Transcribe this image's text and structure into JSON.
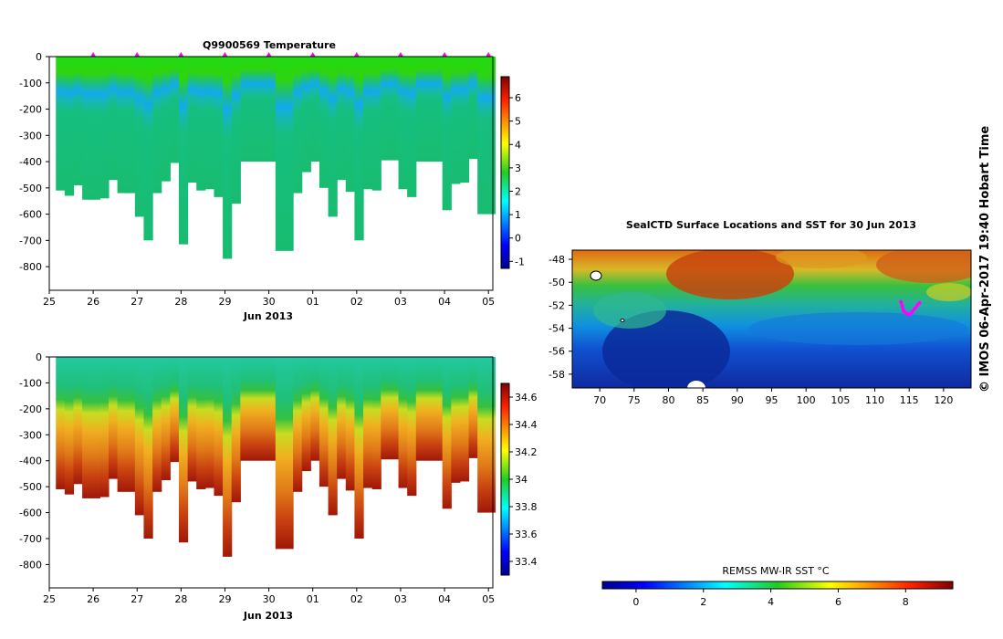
{
  "chart_data": [
    {
      "type": "heatmap",
      "title": "Q9900569  Temperature",
      "xlabel": "Jun 2013",
      "x_ticks": [
        "25",
        "26",
        "27",
        "28",
        "29",
        "30",
        "01",
        "02",
        "03",
        "04",
        "05"
      ],
      "y_ticks": [
        0,
        -100,
        -200,
        -300,
        -400,
        -500,
        -600,
        -700,
        -800
      ],
      "ylim": [
        -890,
        0
      ],
      "colorbar_ticks": [
        6,
        5,
        4,
        3,
        2,
        1,
        0,
        -1
      ],
      "colorbar_range": [
        -1.3,
        6.9
      ],
      "profile_times": [
        25.25,
        25.45,
        25.65,
        25.85,
        26.05,
        26.25,
        26.45,
        26.65,
        26.85,
        27.05,
        27.25,
        27.45,
        27.65,
        27.85,
        28.05,
        28.25,
        28.45,
        28.65,
        28.85,
        29.05,
        29.25,
        29.45,
        29.65,
        29.85,
        30.05,
        30.25,
        30.45,
        30.65,
        30.85,
        31.05,
        31.25,
        31.45,
        31.65,
        31.85,
        32.05,
        32.25,
        32.45,
        32.65,
        32.85,
        33.05,
        33.25,
        33.45,
        33.65,
        33.85,
        34.05,
        34.25,
        34.45,
        34.65,
        34.85,
        35.05
      ],
      "profile_max_depth": [
        510,
        530,
        490,
        545,
        545,
        540,
        470,
        520,
        520,
        610,
        700,
        520,
        475,
        405,
        715,
        480,
        510,
        505,
        535,
        770,
        560,
        400,
        400,
        400,
        400,
        740,
        740,
        520,
        440,
        400,
        500,
        610,
        470,
        515,
        700,
        505,
        510,
        395,
        395,
        505,
        535,
        400,
        400,
        400,
        585,
        485,
        480,
        390,
        600,
        600
      ],
      "surface_marker_times": [
        26,
        27,
        28,
        29,
        30,
        31,
        32,
        33,
        34,
        35
      ]
    },
    {
      "type": "heatmap",
      "title": "",
      "xlabel": "Jun 2013",
      "x_ticks": [
        "25",
        "26",
        "27",
        "28",
        "29",
        "30",
        "01",
        "02",
        "03",
        "04",
        "05"
      ],
      "y_ticks": [
        0,
        -100,
        -200,
        -300,
        -400,
        -500,
        -600,
        -700,
        -800
      ],
      "ylim": [
        -890,
        0
      ],
      "colorbar_ticks": [
        34.6,
        34.4,
        34.2,
        34,
        33.8,
        33.6,
        33.4
      ],
      "colorbar_range": [
        33.3,
        34.7
      ],
      "profile_times": [
        25.25,
        25.45,
        25.65,
        25.85,
        26.05,
        26.25,
        26.45,
        26.65,
        26.85,
        27.05,
        27.25,
        27.45,
        27.65,
        27.85,
        28.05,
        28.25,
        28.45,
        28.65,
        28.85,
        29.05,
        29.25,
        29.45,
        29.65,
        29.85,
        30.05,
        30.25,
        30.45,
        30.65,
        30.85,
        31.05,
        31.25,
        31.45,
        31.65,
        31.85,
        32.05,
        32.25,
        32.45,
        32.65,
        32.85,
        33.05,
        33.25,
        33.45,
        33.65,
        33.85,
        34.05,
        34.25,
        34.45,
        34.65,
        34.85,
        35.05
      ],
      "profile_max_depth": [
        510,
        530,
        490,
        545,
        545,
        540,
        470,
        520,
        520,
        610,
        700,
        520,
        475,
        405,
        715,
        480,
        510,
        505,
        535,
        770,
        560,
        400,
        400,
        400,
        400,
        740,
        740,
        520,
        440,
        400,
        500,
        610,
        470,
        515,
        700,
        505,
        510,
        395,
        395,
        505,
        535,
        400,
        400,
        400,
        585,
        485,
        480,
        390,
        600,
        600
      ]
    },
    {
      "type": "heatmap",
      "title": "SealCTD Surface Locations and SST for 30 Jun 2013",
      "x_ticks": [
        70,
        75,
        80,
        85,
        90,
        95,
        100,
        105,
        110,
        115,
        120
      ],
      "y_ticks": [
        -48,
        -50,
        -52,
        -54,
        -56,
        -58
      ],
      "xlim": [
        66,
        124
      ],
      "ylim": [
        -59.2,
        -47.2
      ],
      "colorbar_label": "REMSS MW-IR SST °C",
      "colorbar_ticks": [
        0,
        2,
        4,
        6,
        8
      ],
      "colorbar_range": [
        -1,
        9.4
      ],
      "track_points": [
        [
          113.8,
          -51.7
        ],
        [
          114.0,
          -52.1
        ],
        [
          114.2,
          -52.5
        ],
        [
          114.6,
          -52.7
        ],
        [
          115.0,
          -52.8
        ],
        [
          115.4,
          -52.6
        ],
        [
          115.8,
          -52.3
        ],
        [
          116.2,
          -52.0
        ],
        [
          116.5,
          -51.8
        ]
      ]
    }
  ],
  "credit": "© IMOS 06-Apr-2017 19:40 Hobart Time",
  "colors": {
    "marker": "#ff00ff",
    "track": "#ff00ff"
  }
}
